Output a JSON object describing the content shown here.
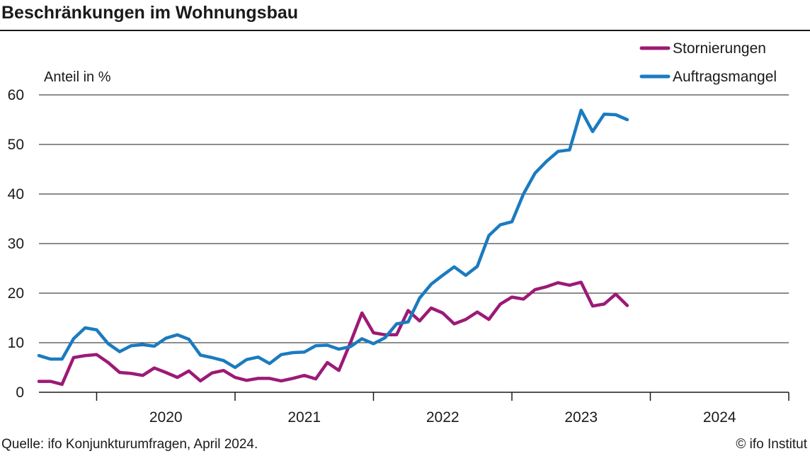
{
  "chart_data": {
    "type": "line",
    "title": "Beschränkungen im Wohnungsbau",
    "ylabel": "Anteil in %",
    "ylim": [
      0,
      60
    ],
    "yticks": [
      0,
      10,
      20,
      30,
      40,
      50,
      60
    ],
    "x_start": "2019-08",
    "x_end": "2024-12",
    "xtick_labels": [
      "2020",
      "2021",
      "2022",
      "2023",
      "2024"
    ],
    "grid": true,
    "legend_position": "top-right",
    "series": [
      {
        "name": "Stornierungen",
        "color": "#9c1a76",
        "values": [
          2.2,
          2.2,
          1.6,
          7.0,
          7.4,
          7.6,
          6.0,
          4.0,
          3.8,
          3.4,
          4.9,
          4.0,
          3.0,
          4.3,
          2.3,
          3.9,
          4.4,
          3.0,
          2.4,
          2.8,
          2.8,
          2.3,
          2.8,
          3.4,
          2.7,
          6.0,
          4.4,
          10.0,
          16.0,
          12.0,
          11.6,
          11.6,
          16.5,
          14.4,
          17.0,
          16.0,
          13.8,
          14.7,
          16.2,
          14.7,
          17.8,
          19.2,
          18.8,
          20.7,
          21.3,
          22.1,
          21.6,
          22.2,
          17.4,
          17.8,
          19.8,
          17.5
        ],
        "dates": [
          "2019-08",
          "2019-09",
          "2019-10",
          "2019-11",
          "2019-12",
          "2020-01",
          "2020-02",
          "2020-03",
          "2020-04",
          "2020-05",
          "2020-06",
          "2020-07",
          "2020-08",
          "2020-09",
          "2020-10",
          "2020-11",
          "2020-12",
          "2021-01",
          "2021-02",
          "2021-03",
          "2021-04",
          "2021-05",
          "2021-06",
          "2021-07",
          "2021-08",
          "2021-09",
          "2021-10",
          "2021-11",
          "2021-12",
          "2022-01",
          "2022-02",
          "2022-03",
          "2022-04",
          "2022-05",
          "2022-06",
          "2022-07",
          "2022-08",
          "2022-09",
          "2022-10",
          "2022-11",
          "2022-12",
          "2023-01",
          "2023-02",
          "2023-03",
          "2023-04",
          "2023-05",
          "2023-06",
          "2023-07",
          "2023-08",
          "2023-09",
          "2023-10",
          "2023-11"
        ]
      },
      {
        "name": "Auftragsmangel",
        "color": "#1b7bbf",
        "values": [
          7.4,
          6.7,
          6.7,
          10.8,
          13.0,
          12.6,
          9.8,
          8.2,
          9.4,
          9.6,
          9.3,
          10.9,
          11.6,
          10.7,
          7.5,
          7.0,
          6.4,
          5.0,
          6.6,
          7.1,
          5.8,
          7.6,
          8.0,
          8.1,
          9.4,
          9.5,
          8.7,
          9.2,
          10.8,
          9.8,
          11.0,
          13.8,
          14.2,
          19.0,
          21.8,
          23.6,
          25.3,
          23.6,
          25.4,
          31.6,
          33.8,
          34.4,
          40.0,
          44.2,
          46.6,
          48.6,
          48.9,
          56.9,
          52.6,
          56.1,
          56.0,
          55.0
        ],
        "dates": [
          "2019-08",
          "2019-09",
          "2019-10",
          "2019-11",
          "2019-12",
          "2020-01",
          "2020-02",
          "2020-03",
          "2020-04",
          "2020-05",
          "2020-06",
          "2020-07",
          "2020-08",
          "2020-09",
          "2020-10",
          "2020-11",
          "2020-12",
          "2021-01",
          "2021-02",
          "2021-03",
          "2021-04",
          "2021-05",
          "2021-06",
          "2021-07",
          "2021-08",
          "2021-09",
          "2021-10",
          "2021-11",
          "2021-12",
          "2022-01",
          "2022-02",
          "2022-03",
          "2022-04",
          "2022-05",
          "2022-06",
          "2022-07",
          "2022-08",
          "2022-09",
          "2022-10",
          "2022-11",
          "2022-12",
          "2023-01",
          "2023-02",
          "2023-03",
          "2023-04",
          "2023-05",
          "2023-06",
          "2023-07",
          "2023-08",
          "2023-09",
          "2023-10",
          "2023-11"
        ]
      }
    ],
    "source": "Quelle: ifo Konjunkturumfragen, April 2024.",
    "credit": "© ifo Institut"
  }
}
